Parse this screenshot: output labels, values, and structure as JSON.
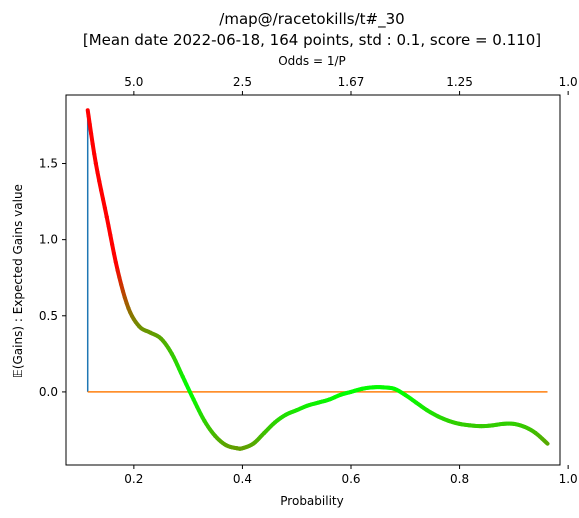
{
  "chart_data": {
    "type": "line",
    "title_line1": "/map@/racetokills/t#_30",
    "title_line2": "[Mean date 2022-06-18, 164 points, std : 0.1, score = 0.110]",
    "xlabel": "Probability",
    "ylabel": "𝔼(Gains) : Expected Gains value",
    "top_axis_label": "Odds  = 1/P",
    "xlim": [
      0.075,
      0.985
    ],
    "ylim": [
      -0.48,
      1.95
    ],
    "x_ticks": [
      0.2,
      0.4,
      0.6,
      0.8,
      1.0
    ],
    "x_tick_labels": [
      "0.2",
      "0.4",
      "0.6",
      "0.8",
      "1.0"
    ],
    "y_ticks": [
      0.0,
      0.5,
      1.0,
      1.5
    ],
    "y_tick_labels": [
      "0.0",
      "0.5",
      "1.0",
      "1.5"
    ],
    "top_ticks_prob": [
      0.2,
      0.4,
      0.6,
      0.8,
      1.0
    ],
    "top_tick_labels": [
      "5.0",
      "2.5",
      "1.67",
      "1.25",
      "1.0"
    ],
    "grid": false,
    "vertical_line": {
      "x": 0.115,
      "y_from": 0.0,
      "y_to": 1.85,
      "color": "#1f77b4"
    },
    "zero_line": {
      "y": 0.0,
      "x_from": 0.115,
      "x_to": 0.962,
      "color": "#ff7f0e"
    },
    "series": [
      {
        "color_scale": [
          "#00ff00",
          "#ff0000"
        ],
        "x": [
          0.115,
          0.13,
          0.15,
          0.17,
          0.19,
          0.21,
          0.23,
          0.25,
          0.27,
          0.29,
          0.31,
          0.33,
          0.35,
          0.37,
          0.39,
          0.4,
          0.42,
          0.44,
          0.46,
          0.48,
          0.5,
          0.52,
          0.54,
          0.56,
          0.58,
          0.6,
          0.62,
          0.64,
          0.66,
          0.68,
          0.7,
          0.72,
          0.74,
          0.76,
          0.78,
          0.8,
          0.82,
          0.84,
          0.86,
          0.88,
          0.9,
          0.92,
          0.94,
          0.962
        ],
        "y": [
          1.85,
          1.5,
          1.15,
          0.8,
          0.55,
          0.43,
          0.39,
          0.35,
          0.25,
          0.1,
          -0.05,
          -0.19,
          -0.29,
          -0.35,
          -0.37,
          -0.37,
          -0.34,
          -0.27,
          -0.2,
          -0.15,
          -0.12,
          -0.09,
          -0.07,
          -0.05,
          -0.02,
          0.0,
          0.02,
          0.03,
          0.03,
          0.02,
          -0.02,
          -0.07,
          -0.12,
          -0.16,
          -0.19,
          -0.21,
          -0.22,
          -0.225,
          -0.22,
          -0.21,
          -0.21,
          -0.23,
          -0.27,
          -0.34
        ]
      }
    ]
  }
}
